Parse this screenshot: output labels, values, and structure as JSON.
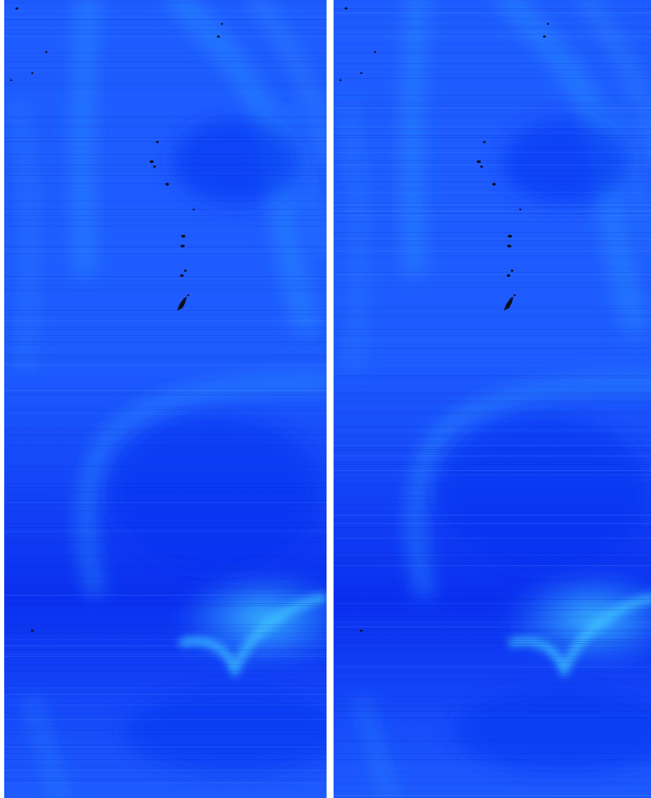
{
  "image": {
    "kind": "side-by-side scientific intensity maps",
    "colormap": [
      "#0a2ff0",
      "#1e5cff",
      "#2a8cff",
      "#3fc8ff"
    ],
    "background": "#ffffff",
    "panels": [
      {
        "id": "left"
      },
      {
        "id": "right"
      }
    ],
    "dark_spot_color": "#0b0f1c"
  }
}
